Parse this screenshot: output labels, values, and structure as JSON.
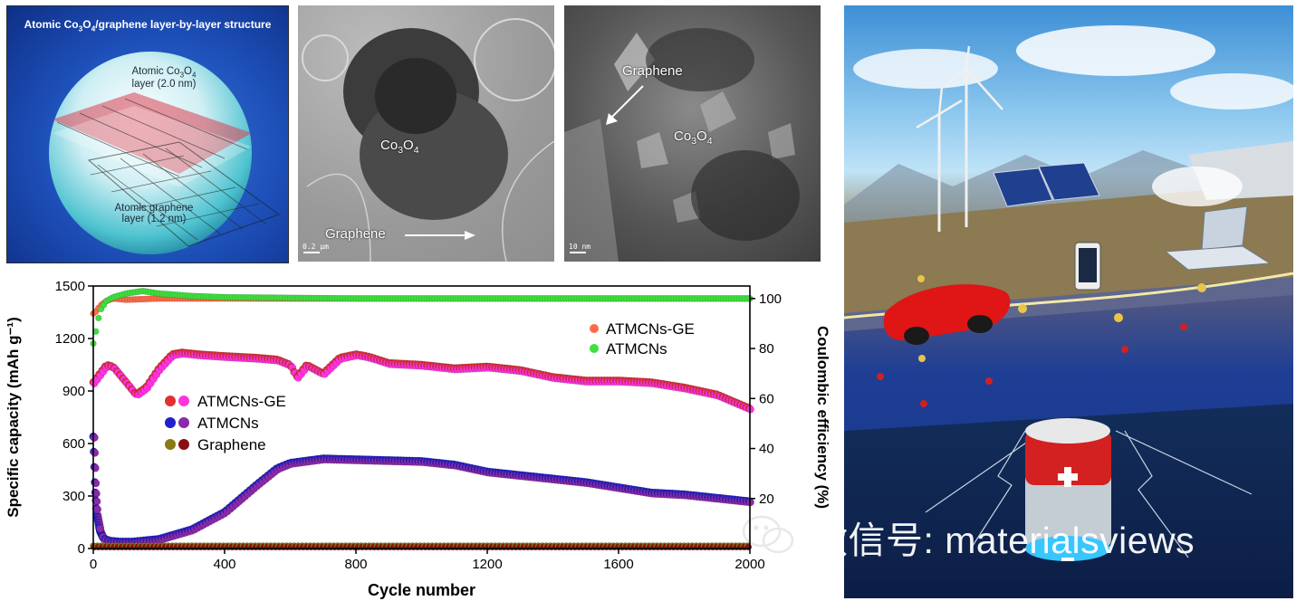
{
  "schematic": {
    "title_pre": "Atomic Co",
    "title_sub1": "3",
    "title_mid": "O",
    "title_sub2": "4",
    "title_post": "/graphene layer-by-layer structure",
    "co3o4_layer_pre": "Atomic Co",
    "co3o4_layer_sub1": "3",
    "co3o4_layer_mid": "O",
    "co3o4_layer_sub2": "4",
    "co3o4_layer_line2": "layer (2.0 nm)",
    "graphene_layer_line1": "Atomic graphene",
    "graphene_layer_line2": "layer (1.2 nm)"
  },
  "tem1": {
    "co_pre": "Co",
    "co_sub1": "3",
    "co_mid": "O",
    "co_sub2": "4",
    "graphene_label": "Graphene",
    "scale_label": "0.2 μm"
  },
  "tem2": {
    "graphene_label": "Graphene",
    "co_pre": "Co",
    "co_sub1": "3",
    "co_mid": "O",
    "co_sub2": "4",
    "scale_label": "10 nm"
  },
  "watermark": "微信号: materialsviews",
  "chart_data": {
    "type": "scatter",
    "xlabel": "Cycle number",
    "ylabel_left": "Specific capacity (mAh g⁻¹)",
    "ylabel_right": "Coulombic efficiency (%)",
    "xlim": [
      0,
      2000
    ],
    "ylim_left": [
      0,
      1500
    ],
    "ylim_right": [
      0,
      105
    ],
    "xticks": [
      "0",
      "400",
      "800",
      "1200",
      "1600",
      "2000"
    ],
    "yticks_left": [
      "0",
      "300",
      "600",
      "900",
      "1200",
      "1500"
    ],
    "yticks_right": [
      "20",
      "40",
      "60",
      "80",
      "100"
    ],
    "legend_capacity": [
      "ATMCNs-GE",
      "ATMCNs",
      "Graphene"
    ],
    "legend_efficiency": [
      "ATMCNs-GE",
      "ATMCNs"
    ],
    "colors": {
      "ge_discharge": "#e03030",
      "ge_charge": "#ff33dd",
      "atmcn_discharge": "#2020cc",
      "atmcn_charge": "#8a2aa8",
      "graphene_discharge": "#8a7a10",
      "graphene_charge": "#8a1010",
      "ce_ge": "#ff6a4a",
      "ce_atmcn": "#3ee03e"
    },
    "series": [
      {
        "name": "ATMCNs-GE",
        "axis": "left",
        "x": [
          0,
          20,
          40,
          60,
          100,
          130,
          160,
          200,
          240,
          270,
          320,
          400,
          500,
          560,
          600,
          620,
          650,
          700,
          750,
          800,
          830,
          850,
          900,
          1000,
          1100,
          1200,
          1300,
          1400,
          1500,
          1600,
          1700,
          1800,
          1900,
          1950,
          2000
        ],
        "values": [
          950,
          1000,
          1050,
          1040,
          950,
          880,
          920,
          1030,
          1110,
          1120,
          1110,
          1100,
          1090,
          1080,
          1050,
          980,
          1050,
          1000,
          1090,
          1110,
          1100,
          1090,
          1060,
          1050,
          1030,
          1040,
          1020,
          980,
          960,
          960,
          950,
          920,
          880,
          840,
          800
        ]
      },
      {
        "name": "ATMCNs",
        "axis": "left",
        "x": [
          0,
          5,
          10,
          20,
          30,
          50,
          80,
          120,
          200,
          300,
          400,
          500,
          560,
          600,
          700,
          800,
          900,
          1000,
          1100,
          1200,
          1300,
          1400,
          1500,
          1600,
          1700,
          1800,
          1900,
          2000
        ],
        "values": [
          640,
          350,
          200,
          100,
          60,
          45,
          40,
          40,
          55,
          110,
          210,
          370,
          460,
          490,
          515,
          510,
          505,
          500,
          480,
          440,
          420,
          400,
          380,
          350,
          320,
          310,
          290,
          270
        ]
      },
      {
        "name": "Graphene",
        "axis": "left",
        "x": [
          0,
          2000
        ],
        "values": [
          15,
          15
        ]
      },
      {
        "name": "ATMCNs-GE",
        "axis": "right",
        "x": [
          0,
          10,
          20,
          40,
          60,
          100,
          200,
          400,
          800,
          1200,
          1600,
          2000
        ],
        "values": [
          94,
          95,
          97,
          99,
          100,
          99.5,
          100,
          100,
          100,
          100,
          100,
          100
        ]
      },
      {
        "name": "ATMCNs",
        "axis": "right",
        "x": [
          0,
          10,
          20,
          40,
          60,
          100,
          150,
          200,
          300,
          400,
          800,
          1200,
          1600,
          2000
        ],
        "values": [
          82,
          88,
          95,
          99,
          100.5,
          102,
          103,
          102,
          101,
          100.5,
          100,
          100,
          100,
          100
        ]
      }
    ]
  }
}
